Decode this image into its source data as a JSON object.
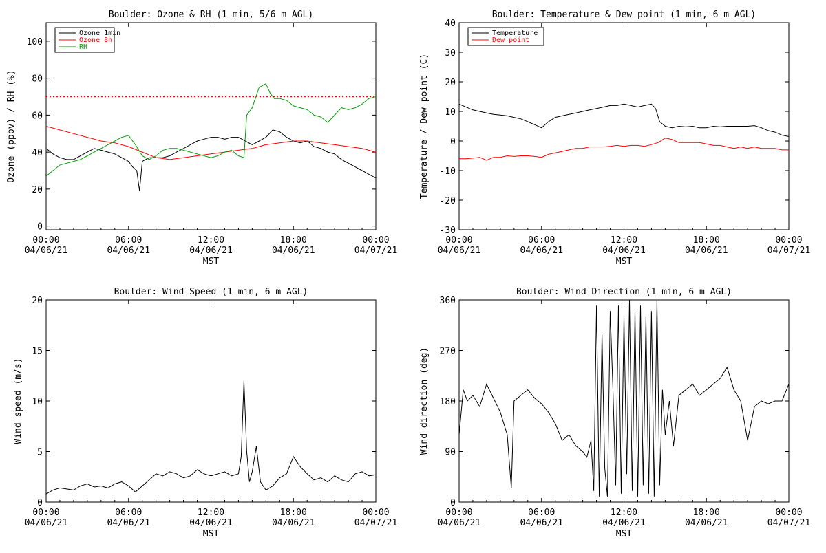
{
  "chart_data": [
    {
      "type": "line",
      "title": "Boulder: Ozone & RH (1 min, 5/6 m AGL)",
      "xlabel": "MST",
      "ylabel": "Ozone (ppbv) / RH (%)",
      "x_ticks": [
        [
          "00:00",
          "04/06/21"
        ],
        [
          "06:00",
          "04/06/21"
        ],
        [
          "12:00",
          "04/06/21"
        ],
        [
          "18:00",
          "04/06/21"
        ],
        [
          "00:00",
          "04/07/21"
        ]
      ],
      "xlim": [
        0,
        24
      ],
      "ylim": [
        -2,
        110
      ],
      "y_ticks": [
        0,
        20,
        40,
        60,
        80,
        100
      ],
      "legend": "top-left",
      "reference_line": {
        "y": 70,
        "color": "#ff0000",
        "style": "dotted"
      },
      "series": [
        {
          "name": "Ozone 1min",
          "color": "#000000",
          "x": [
            0,
            0.5,
            1,
            1.5,
            2,
            2.5,
            3,
            3.5,
            4,
            4.5,
            5,
            5.5,
            6,
            6.3,
            6.6,
            6.8,
            7,
            7.5,
            8,
            8.5,
            9,
            9.5,
            10,
            10.5,
            11,
            11.5,
            12,
            12.5,
            13,
            13.5,
            14,
            14.5,
            15,
            15.5,
            16,
            16.5,
            17,
            17.5,
            18,
            18.5,
            19,
            19.5,
            20,
            20.5,
            21,
            21.5,
            22,
            22.5,
            23,
            23.5,
            24
          ],
          "values": [
            42,
            39,
            37,
            36,
            36,
            38,
            40,
            42,
            41,
            40,
            39,
            37,
            35,
            32,
            30,
            19,
            35,
            37,
            37,
            37,
            38,
            40,
            42,
            44,
            46,
            47,
            48,
            48,
            47,
            48,
            48,
            46,
            44,
            46,
            48,
            52,
            51,
            48,
            46,
            45,
            46,
            43,
            42,
            40,
            39,
            36,
            34,
            32,
            30,
            28,
            26
          ]
        },
        {
          "name": "Ozone 8h",
          "color": "#ff0000",
          "x": [
            0,
            1,
            2,
            3,
            4,
            5,
            6,
            7,
            8,
            9,
            10,
            11,
            12,
            13,
            14,
            15,
            16,
            17,
            18,
            19,
            20,
            21,
            22,
            23,
            24
          ],
          "values": [
            54,
            52,
            50,
            48,
            46,
            45,
            43,
            40,
            37,
            36,
            37,
            38,
            39,
            40,
            41,
            42,
            44,
            45,
            46,
            46,
            45,
            44,
            43,
            42,
            40
          ]
        },
        {
          "name": "RH",
          "color": "#00a000",
          "x": [
            0,
            0.5,
            1,
            1.5,
            2,
            2.5,
            3,
            3.5,
            4,
            4.5,
            5,
            5.5,
            6,
            6.5,
            7,
            7.5,
            8,
            8.5,
            9,
            9.5,
            10,
            10.5,
            11,
            11.5,
            12,
            12.5,
            13,
            13.5,
            14,
            14.4,
            14.6,
            15,
            15.5,
            16,
            16.3,
            16.6,
            17,
            17.5,
            18,
            18.5,
            19,
            19.5,
            20,
            20.5,
            21,
            21.5,
            22,
            22.5,
            23,
            23.5,
            24
          ],
          "values": [
            27,
            30,
            33,
            34,
            35,
            36,
            38,
            40,
            42,
            44,
            46,
            48,
            49,
            44,
            38,
            36,
            38,
            41,
            42,
            42,
            41,
            40,
            39,
            38,
            37,
            38,
            40,
            41,
            38,
            37,
            60,
            64,
            75,
            77,
            72,
            69,
            69,
            68,
            65,
            64,
            63,
            60,
            59,
            56,
            60,
            64,
            63,
            64,
            66,
            69,
            70
          ]
        }
      ]
    },
    {
      "type": "line",
      "title": "Boulder: Temperature & Dew point (1 min, 6 m AGL)",
      "xlabel": "MST",
      "ylabel": "Temperature / Dew point (C)",
      "x_ticks": [
        [
          "00:00",
          "04/06/21"
        ],
        [
          "06:00",
          "04/06/21"
        ],
        [
          "12:00",
          "04/06/21"
        ],
        [
          "18:00",
          "04/06/21"
        ],
        [
          "00:00",
          "04/07/21"
        ]
      ],
      "xlim": [
        0,
        24
      ],
      "ylim": [
        -30,
        40
      ],
      "y_ticks": [
        -30,
        -20,
        -10,
        0,
        10,
        20,
        30,
        40
      ],
      "legend": "top-left",
      "series": [
        {
          "name": "Temperature",
          "color": "#000000",
          "x": [
            0,
            0.5,
            1,
            1.5,
            2,
            2.5,
            3,
            3.5,
            4,
            4.5,
            5,
            5.5,
            6,
            6.5,
            7,
            7.5,
            8,
            8.5,
            9,
            9.5,
            10,
            10.5,
            11,
            11.5,
            12,
            12.5,
            13,
            13.5,
            14,
            14.3,
            14.6,
            15,
            15.5,
            16,
            16.5,
            17,
            17.5,
            18,
            18.5,
            19,
            19.5,
            20,
            20.5,
            21,
            21.5,
            22,
            22.5,
            23,
            23.5,
            24
          ],
          "values": [
            12.5,
            11.5,
            10.5,
            10,
            9.5,
            9,
            8.8,
            8.5,
            8,
            7.5,
            6.5,
            5.5,
            4.5,
            6.5,
            8,
            8.5,
            9,
            9.5,
            10,
            10.5,
            11,
            11.5,
            12,
            12,
            12.5,
            12,
            11.5,
            12,
            12.5,
            11,
            6.5,
            5,
            4.5,
            5,
            4.8,
            5,
            4.5,
            4.5,
            5,
            4.8,
            5,
            5,
            5,
            5,
            5.2,
            4.5,
            3.5,
            3,
            2,
            1.5
          ]
        },
        {
          "name": "Dew point",
          "color": "#ff0000",
          "x": [
            0,
            0.5,
            1,
            1.5,
            2,
            2.5,
            3,
            3.5,
            4,
            4.5,
            5,
            5.5,
            6,
            6.5,
            7,
            7.5,
            8,
            8.5,
            9,
            9.5,
            10,
            10.5,
            11,
            11.5,
            12,
            12.5,
            13,
            13.5,
            14,
            14.5,
            15,
            15.5,
            16,
            16.5,
            17,
            17.5,
            18,
            18.5,
            19,
            19.5,
            20,
            20.5,
            21,
            21.5,
            22,
            22.5,
            23,
            23.5,
            24
          ],
          "values": [
            -6,
            -6,
            -5.8,
            -5.5,
            -6.5,
            -5.5,
            -5.5,
            -5,
            -5.2,
            -5,
            -5,
            -5.2,
            -5.5,
            -4.5,
            -4,
            -3.5,
            -3,
            -2.5,
            -2.5,
            -2,
            -2,
            -2,
            -1.8,
            -1.5,
            -1.8,
            -1.5,
            -1.5,
            -1.8,
            -1.2,
            -0.5,
            1,
            0.5,
            -0.5,
            -0.5,
            -0.5,
            -0.5,
            -1,
            -1.5,
            -1.5,
            -2,
            -2.5,
            -2,
            -2.5,
            -2,
            -2.5,
            -2.5,
            -2.5,
            -3,
            -3
          ]
        }
      ]
    },
    {
      "type": "line",
      "title": "Boulder: Wind Speed (1 min, 6 m AGL)",
      "xlabel": "MST",
      "ylabel": "Wind speed (m/s)",
      "x_ticks": [
        [
          "00:00",
          "04/06/21"
        ],
        [
          "06:00",
          "04/06/21"
        ],
        [
          "12:00",
          "04/06/21"
        ],
        [
          "18:00",
          "04/06/21"
        ],
        [
          "00:00",
          "04/07/21"
        ]
      ],
      "xlim": [
        0,
        24
      ],
      "ylim": [
        0,
        20
      ],
      "y_ticks": [
        0,
        5,
        10,
        15,
        20
      ],
      "series": [
        {
          "name": "",
          "color": "#000000",
          "x": [
            0,
            0.5,
            1,
            1.5,
            2,
            2.5,
            3,
            3.5,
            4,
            4.5,
            5,
            5.5,
            6,
            6.5,
            7,
            7.5,
            8,
            8.5,
            9,
            9.5,
            10,
            10.5,
            11,
            11.5,
            12,
            12.5,
            13,
            13.5,
            14,
            14.2,
            14.4,
            14.6,
            14.8,
            15,
            15.3,
            15.6,
            16,
            16.5,
            17,
            17.5,
            18,
            18.5,
            19,
            19.5,
            20,
            20.5,
            21,
            21.5,
            22,
            22.5,
            23,
            23.5,
            24
          ],
          "values": [
            0.8,
            1.2,
            1.4,
            1.3,
            1.2,
            1.6,
            1.8,
            1.5,
            1.6,
            1.4,
            1.8,
            2,
            1.6,
            1,
            1.6,
            2.2,
            2.8,
            2.6,
            3,
            2.8,
            2.4,
            2.6,
            3.2,
            2.8,
            2.6,
            2.8,
            3,
            2.6,
            2.8,
            4.5,
            12,
            5,
            2,
            3,
            5.5,
            2,
            1.2,
            1.6,
            2.4,
            2.8,
            4.5,
            3.5,
            2.8,
            2.2,
            2.4,
            2,
            2.6,
            2.2,
            2,
            2.8,
            3,
            2.6,
            2.7
          ]
        }
      ]
    },
    {
      "type": "line",
      "title": "Boulder: Wind Direction (1 min, 6 m AGL)",
      "xlabel": "MST",
      "ylabel": "Wind direction (deg)",
      "x_ticks": [
        [
          "00:00",
          "04/06/21"
        ],
        [
          "06:00",
          "04/06/21"
        ],
        [
          "12:00",
          "04/06/21"
        ],
        [
          "18:00",
          "04/06/21"
        ],
        [
          "00:00",
          "04/07/21"
        ]
      ],
      "xlim": [
        0,
        24
      ],
      "ylim": [
        0,
        360
      ],
      "y_ticks": [
        0,
        90,
        180,
        270,
        360
      ],
      "series": [
        {
          "name": "",
          "color": "#000000",
          "x": [
            0,
            0.3,
            0.6,
            1,
            1.5,
            2,
            2.5,
            3,
            3.5,
            3.8,
            4,
            4.5,
            5,
            5.5,
            6,
            6.5,
            7,
            7.5,
            8,
            8.5,
            9,
            9.3,
            9.6,
            9.8,
            10,
            10.2,
            10.4,
            10.6,
            10.8,
            11,
            11.2,
            11.4,
            11.6,
            11.8,
            12,
            12.2,
            12.4,
            12.6,
            12.8,
            13,
            13.2,
            13.4,
            13.6,
            13.8,
            14,
            14.2,
            14.4,
            14.6,
            14.8,
            15,
            15.3,
            15.6,
            16,
            16.5,
            17,
            17.5,
            18,
            18.5,
            19,
            19.5,
            20,
            20.5,
            21,
            21.5,
            22,
            22.5,
            23,
            23.5,
            24
          ],
          "values": [
            120,
            200,
            180,
            190,
            170,
            210,
            185,
            160,
            120,
            25,
            180,
            190,
            200,
            185,
            175,
            160,
            140,
            110,
            120,
            100,
            90,
            80,
            110,
            20,
            350,
            10,
            300,
            60,
            10,
            340,
            200,
            30,
            350,
            15,
            330,
            50,
            360,
            20,
            340,
            10,
            350,
            30,
            330,
            15,
            340,
            10,
            360,
            30,
            200,
            120,
            180,
            100,
            190,
            200,
            210,
            190,
            200,
            210,
            220,
            240,
            200,
            180,
            110,
            170,
            180,
            175,
            180,
            180,
            210
          ]
        }
      ]
    }
  ]
}
